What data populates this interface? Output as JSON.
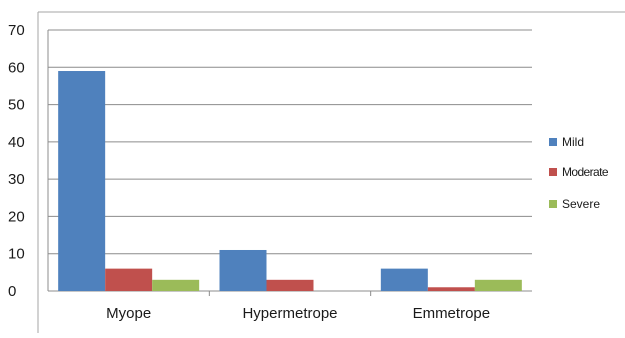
{
  "chart_data": {
    "type": "bar",
    "categories": [
      "Myope",
      "Hypermetrope",
      "Emmetrope"
    ],
    "series": [
      {
        "name": "Mild",
        "color": "#4f81bd",
        "values": [
          59,
          11,
          6
        ]
      },
      {
        "name": "Moderate",
        "color": "#c0504d",
        "values": [
          6,
          3,
          1
        ]
      },
      {
        "name": "Severe",
        "color": "#9bbb59",
        "values": [
          3,
          0,
          3
        ]
      }
    ],
    "title": "",
    "xlabel": "",
    "ylabel": "",
    "ylim": [
      0,
      70
    ],
    "yticks": [
      "0",
      "10",
      "20",
      "30",
      "40",
      "50",
      "60",
      "70"
    ],
    "grid": true,
    "legend_position": "right"
  }
}
